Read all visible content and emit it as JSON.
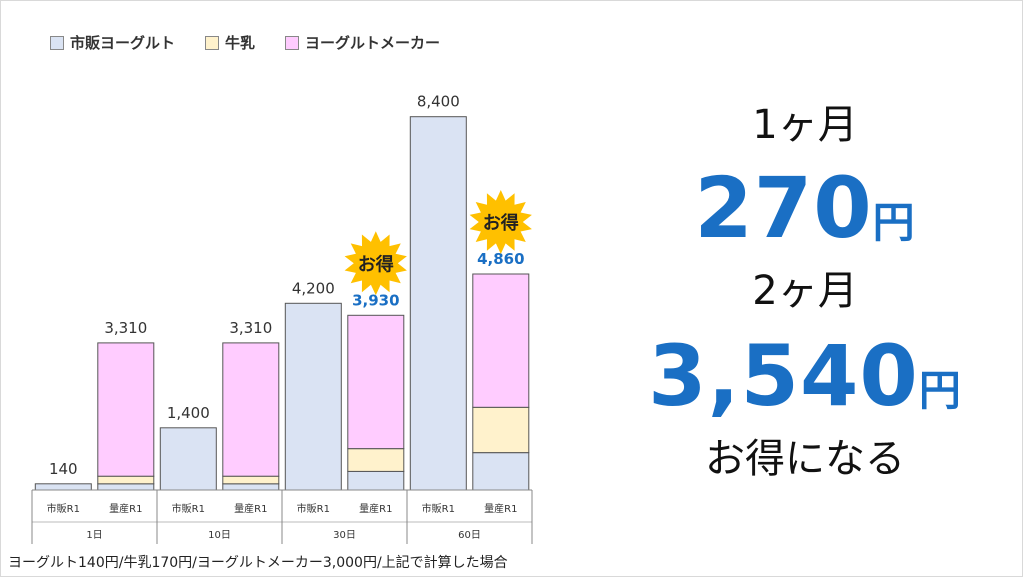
{
  "legend": {
    "items": [
      {
        "label": "市販ヨーグルト",
        "color": "#dae3f3"
      },
      {
        "label": "牛乳",
        "color": "#fff2cc"
      },
      {
        "label": "ヨーグルトメーカー",
        "color": "#ffccff"
      }
    ]
  },
  "badge_text": "お得",
  "footnote": "ヨーグルト140円/牛乳170円/ヨーグルトメーカー3,000円/上記で計算した場合",
  "summary": {
    "label1": "1ヶ月",
    "value1": "270",
    "unit": "円",
    "label2": "2ヶ月",
    "value2": "3,540",
    "footer": "お得になる"
  },
  "colors": {
    "accent": "#1a6fc4",
    "badge": "#ffc000"
  },
  "chart_data": {
    "type": "bar",
    "stacked": true,
    "groups": [
      "1日",
      "10日",
      "30日",
      "60日"
    ],
    "bar_labels": [
      "市販R1",
      "量産R1"
    ],
    "series_names": [
      "市販ヨーグルト",
      "牛乳",
      "ヨーグルトメーカー"
    ],
    "bars": [
      {
        "group": "1日",
        "label": "市販R1",
        "segments": [
          140,
          0,
          0
        ],
        "total": "140",
        "highlight": false
      },
      {
        "group": "1日",
        "label": "量産R1",
        "segments": [
          140,
          170,
          3000
        ],
        "total": "3,310",
        "highlight": false
      },
      {
        "group": "10日",
        "label": "市販R1",
        "segments": [
          1400,
          0,
          0
        ],
        "total": "1,400",
        "highlight": false
      },
      {
        "group": "10日",
        "label": "量産R1",
        "segments": [
          140,
          170,
          3000
        ],
        "total": "3,310",
        "highlight": false
      },
      {
        "group": "30日",
        "label": "市販R1",
        "segments": [
          4200,
          0,
          0
        ],
        "total": "4,200",
        "highlight": false
      },
      {
        "group": "30日",
        "label": "量産R1",
        "segments": [
          420,
          510,
          3000
        ],
        "total": "3,930",
        "highlight": true
      },
      {
        "group": "60日",
        "label": "市販R1",
        "segments": [
          8400,
          0,
          0
        ],
        "total": "8,400",
        "highlight": false
      },
      {
        "group": "60日",
        "label": "量産R1",
        "segments": [
          840,
          1020,
          3000
        ],
        "total": "4,860",
        "highlight": true
      }
    ],
    "ylim": [
      0,
      9000
    ],
    "grid": false,
    "legend_position": "top-left"
  }
}
